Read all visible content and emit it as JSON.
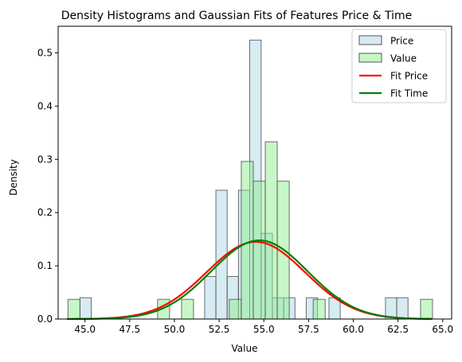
{
  "chart_data": {
    "type": "bar",
    "title": "Density Histograms and Gaussian Fits of Features Price & Time",
    "xlabel": "Value",
    "ylabel": "Density",
    "xlim": [
      43.5,
      65.5
    ],
    "ylim": [
      0,
      0.55
    ],
    "xticks": [
      45.0,
      47.5,
      50.0,
      52.5,
      55.0,
      57.5,
      60.0,
      62.5,
      65.0
    ],
    "xtick_labels": [
      "45.0",
      "47.5",
      "50.0",
      "52.5",
      "55.0",
      "57.5",
      "60.0",
      "62.5",
      "65.0"
    ],
    "yticks": [
      0.0,
      0.1,
      0.2,
      0.3,
      0.4,
      0.5
    ],
    "ytick_labels": [
      "0.0",
      "0.1",
      "0.2",
      "0.3",
      "0.4",
      "0.5"
    ],
    "grid": false,
    "legend_position": "top-right",
    "legend": [
      "Price",
      "Value",
      "Fit Price",
      "Fit Time"
    ],
    "histograms": [
      {
        "name": "Price",
        "color": "#add8e6",
        "edge_color": "#555555",
        "bins": [
          {
            "x0": 44.72,
            "x1": 45.35,
            "density": 0.04
          },
          {
            "x0": 51.69,
            "x1": 52.32,
            "density": 0.08
          },
          {
            "x0": 52.32,
            "x1": 52.95,
            "density": 0.242
          },
          {
            "x0": 52.95,
            "x1": 53.58,
            "density": 0.08
          },
          {
            "x0": 53.58,
            "x1": 54.21,
            "density": 0.242
          },
          {
            "x0": 54.21,
            "x1": 54.85,
            "density": 0.524
          },
          {
            "x0": 54.85,
            "x1": 55.48,
            "density": 0.161
          },
          {
            "x0": 55.48,
            "x1": 56.11,
            "density": 0.04
          },
          {
            "x0": 56.11,
            "x1": 56.74,
            "density": 0.04
          },
          {
            "x0": 57.37,
            "x1": 58.0,
            "density": 0.04
          },
          {
            "x0": 58.64,
            "x1": 59.27,
            "density": 0.04
          },
          {
            "x0": 61.8,
            "x1": 62.43,
            "density": 0.04
          },
          {
            "x0": 62.43,
            "x1": 63.06,
            "density": 0.04
          }
        ]
      },
      {
        "name": "Value",
        "color": "#90ee90",
        "edge_color": "#555555",
        "bins": [
          {
            "x0": 44.05,
            "x1": 44.72,
            "density": 0.037
          },
          {
            "x0": 49.06,
            "x1": 49.73,
            "density": 0.037
          },
          {
            "x0": 50.4,
            "x1": 51.07,
            "density": 0.037
          },
          {
            "x0": 53.07,
            "x1": 53.74,
            "density": 0.037
          },
          {
            "x0": 53.74,
            "x1": 54.41,
            "density": 0.296
          },
          {
            "x0": 54.41,
            "x1": 55.08,
            "density": 0.259
          },
          {
            "x0": 55.08,
            "x1": 55.75,
            "density": 0.333
          },
          {
            "x0": 55.75,
            "x1": 56.42,
            "density": 0.259
          },
          {
            "x0": 57.76,
            "x1": 58.43,
            "density": 0.037
          },
          {
            "x0": 63.76,
            "x1": 64.43,
            "density": 0.037
          }
        ]
      }
    ],
    "series": [
      {
        "name": "Fit Price",
        "color": "#ff0000",
        "distribution": "normal",
        "mean": 54.55,
        "std": 2.75,
        "x_range": [
          44.0,
          64.4
        ]
      },
      {
        "name": "Fit Time",
        "color": "#008000",
        "distribution": "normal",
        "mean": 54.75,
        "std": 2.7,
        "x_range": [
          44.0,
          64.4
        ]
      }
    ]
  }
}
